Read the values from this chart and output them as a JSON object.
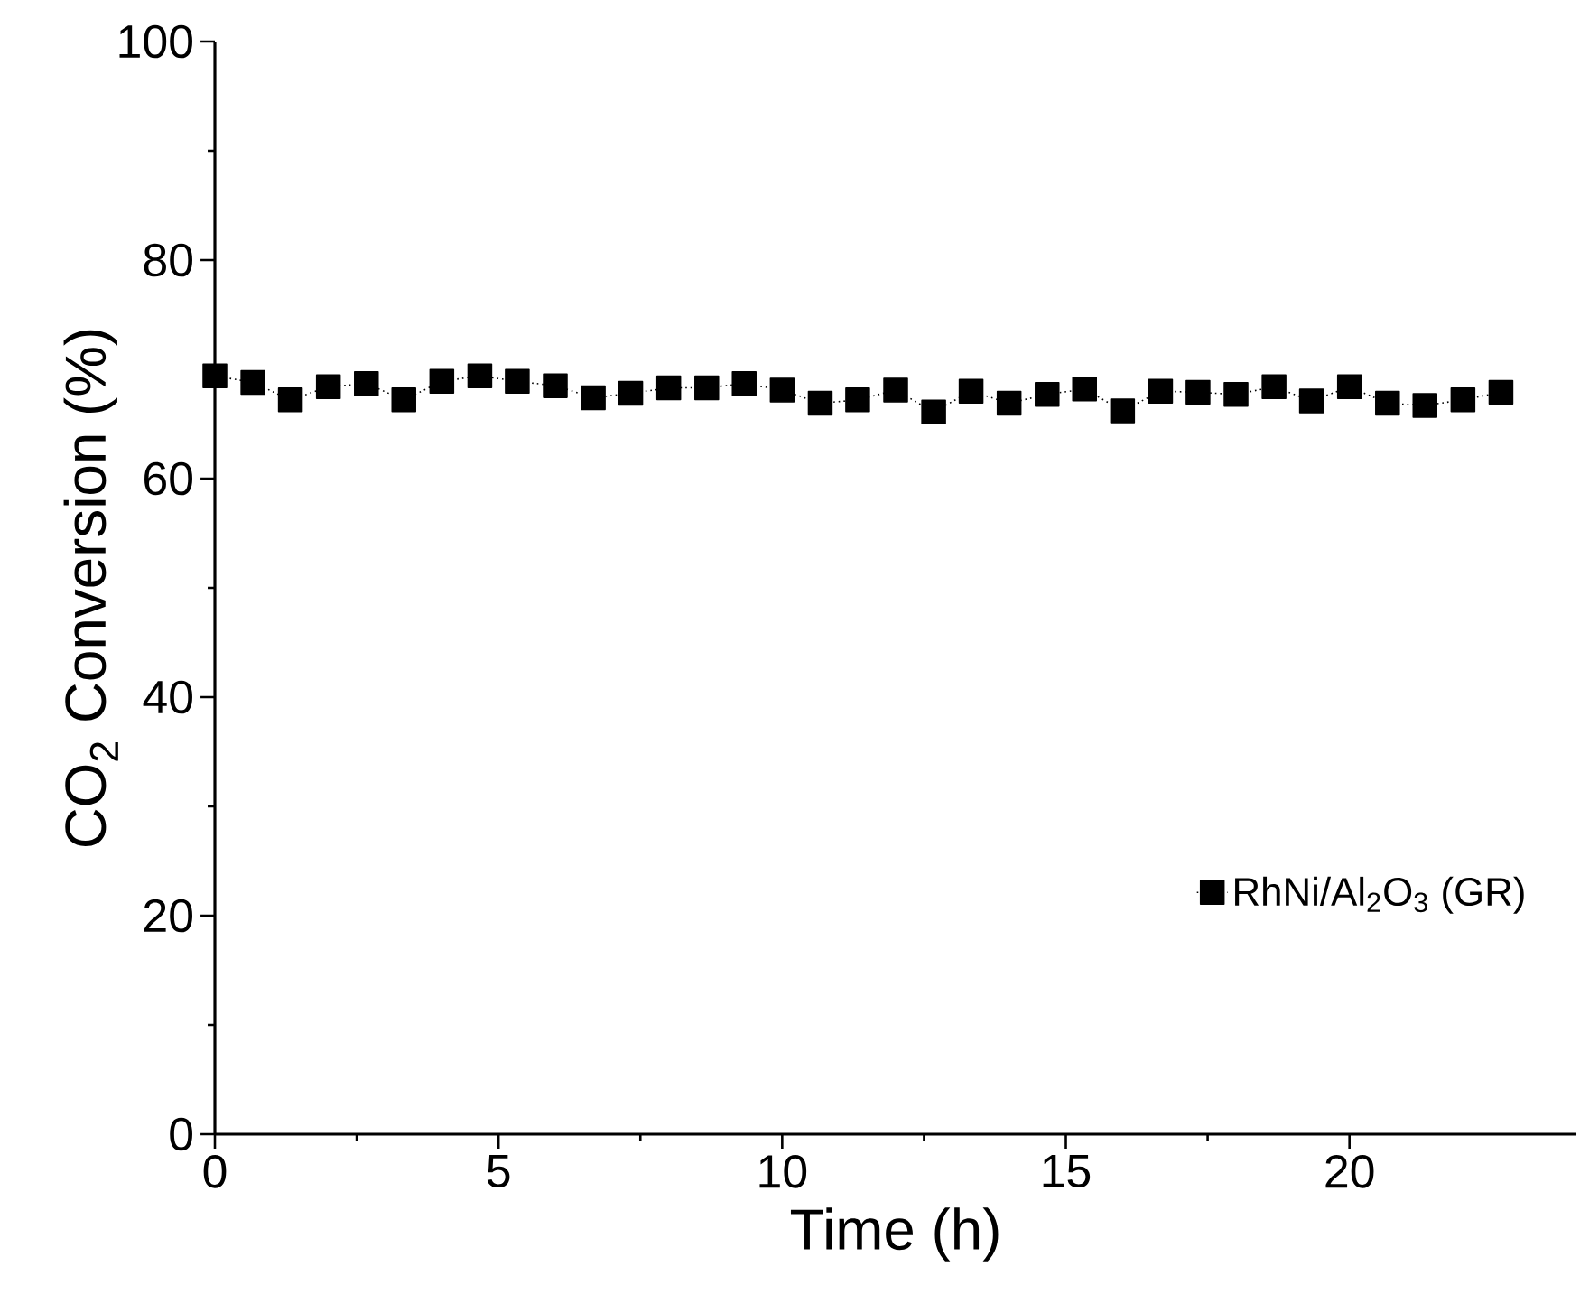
{
  "chart_data": {
    "type": "line",
    "xlabel": "Time (h)",
    "ylabel": "CO$_{2}$ Conversion (%)",
    "xlim": [
      0,
      24
    ],
    "xticks": [
      0,
      5,
      10,
      15,
      20
    ],
    "ylim": [
      0,
      100
    ],
    "yticks": [
      0,
      20,
      40,
      60,
      80,
      100
    ],
    "x": [
      0,
      0.67,
      1.33,
      2,
      2.67,
      3.33,
      4,
      4.67,
      5.33,
      6,
      6.67,
      7.33,
      8,
      8.67,
      9.33,
      10,
      10.67,
      11.33,
      12,
      12.67,
      13.33,
      14,
      14.67,
      15.33,
      16,
      16.67,
      17.33,
      18,
      18.67,
      19.33,
      20,
      20.67,
      21.33,
      22,
      22.67
    ],
    "series": [
      {
        "name": "RhNi/Al$_{2}$O$_{3}$ (GR)",
        "color": "#000000",
        "values": [
          69.4,
          68.8,
          67.2,
          68.4,
          68.7,
          67.2,
          68.9,
          69.4,
          68.9,
          68.5,
          67.4,
          67.8,
          68.3,
          68.3,
          68.7,
          68.1,
          66.9,
          67.2,
          68.1,
          66.1,
          68.0,
          66.9,
          67.7,
          68.2,
          66.2,
          68.0,
          67.9,
          67.7,
          68.4,
          67.1,
          68.4,
          66.9,
          66.7,
          67.2,
          67.9
        ]
      }
    ],
    "marker": "square",
    "line_style": "dotted",
    "legend": "bottom right",
    "grid": false
  }
}
